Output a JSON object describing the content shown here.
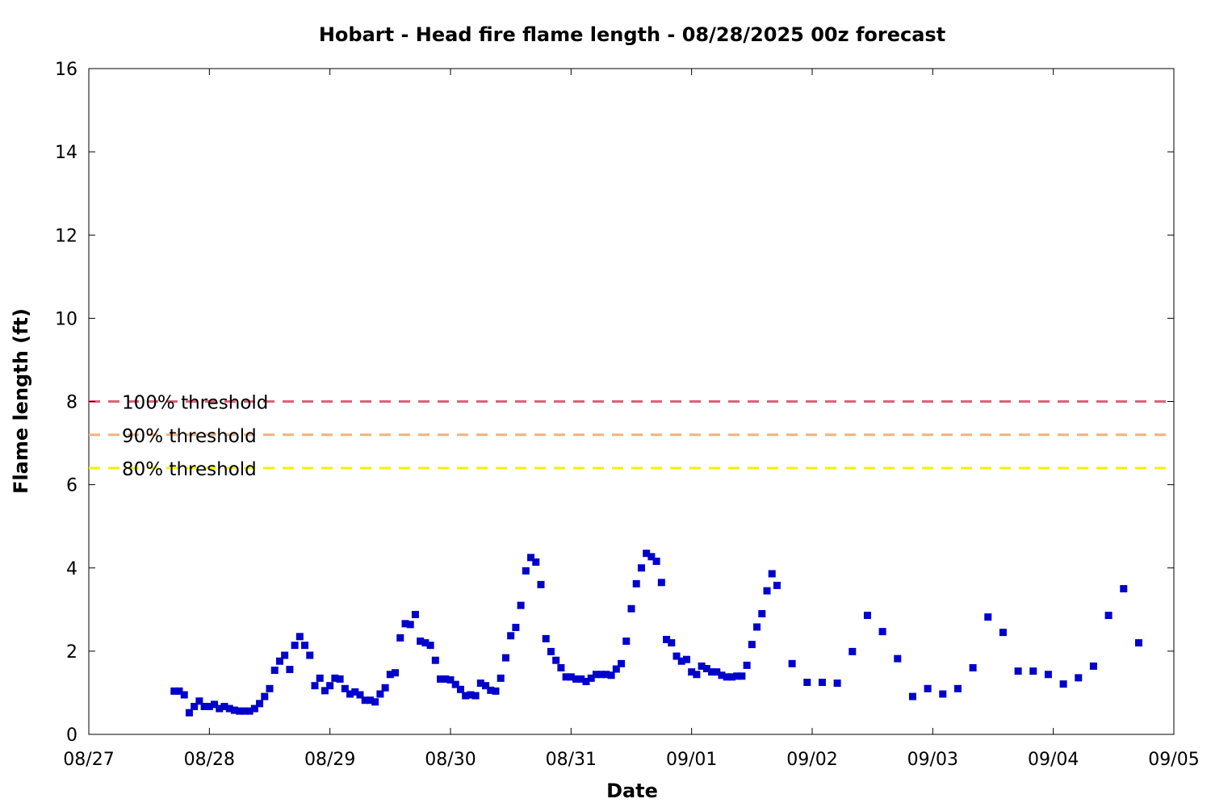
{
  "chart_data": {
    "type": "scatter",
    "title": "Hobart - Head fire flame length - 08/28/2025 00z forecast",
    "xlabel": "Date",
    "ylabel": "Flame length (ft)",
    "x_ticks": [
      "08/27",
      "08/28",
      "08/29",
      "08/30",
      "08/31",
      "09/01",
      "09/02",
      "09/03",
      "09/04",
      "09/05"
    ],
    "xlim": [
      "08/27 00:00",
      "09/05 00:00"
    ],
    "ylim": [
      0,
      16
    ],
    "y_ticks": [
      0,
      2,
      4,
      6,
      8,
      10,
      12,
      14,
      16
    ],
    "grid": false,
    "marker_color": "#0000cc",
    "thresholds": [
      {
        "label": "100% threshold",
        "value": 8.0,
        "color": "#e0607a"
      },
      {
        "label": "90% threshold",
        "value": 7.2,
        "color": "#f2b27a"
      },
      {
        "label": "80% threshold",
        "value": 6.4,
        "color": "#f2f200"
      }
    ],
    "series": [
      {
        "points": [
          [
            "08/27 17:00",
            1.04
          ],
          [
            "08/27 18:00",
            1.04
          ],
          [
            "08/27 19:00",
            0.95
          ],
          [
            "08/27 20:00",
            0.52
          ],
          [
            "08/27 21:00",
            0.67
          ],
          [
            "08/27 22:00",
            0.8
          ],
          [
            "08/27 23:00",
            0.67
          ],
          [
            "08/28 00:00",
            0.67
          ],
          [
            "08/28 01:00",
            0.72
          ],
          [
            "08/28 02:00",
            0.62
          ],
          [
            "08/28 03:00",
            0.67
          ],
          [
            "08/28 04:00",
            0.62
          ],
          [
            "08/28 05:00",
            0.58
          ],
          [
            "08/28 06:00",
            0.56
          ],
          [
            "08/28 07:00",
            0.56
          ],
          [
            "08/28 08:00",
            0.56
          ],
          [
            "08/28 09:00",
            0.62
          ],
          [
            "08/28 10:00",
            0.74
          ],
          [
            "08/28 11:00",
            0.91
          ],
          [
            "08/28 12:00",
            1.1
          ],
          [
            "08/28 13:00",
            1.54
          ],
          [
            "08/28 14:00",
            1.76
          ],
          [
            "08/28 15:00",
            1.9
          ],
          [
            "08/28 16:00",
            1.56
          ],
          [
            "08/28 17:00",
            2.14
          ],
          [
            "08/28 18:00",
            2.35
          ],
          [
            "08/28 19:00",
            2.14
          ],
          [
            "08/28 20:00",
            1.9
          ],
          [
            "08/28 21:00",
            1.17
          ],
          [
            "08/28 22:00",
            1.35
          ],
          [
            "08/28 23:00",
            1.05
          ],
          [
            "08/29 00:00",
            1.17
          ],
          [
            "08/29 01:00",
            1.35
          ],
          [
            "08/29 02:00",
            1.33
          ],
          [
            "08/29 03:00",
            1.1
          ],
          [
            "08/29 04:00",
            0.97
          ],
          [
            "08/29 05:00",
            1.02
          ],
          [
            "08/29 06:00",
            0.95
          ],
          [
            "08/29 07:00",
            0.82
          ],
          [
            "08/29 08:00",
            0.82
          ],
          [
            "08/29 09:00",
            0.78
          ],
          [
            "08/29 10:00",
            0.97
          ],
          [
            "08/29 11:00",
            1.12
          ],
          [
            "08/29 12:00",
            1.44
          ],
          [
            "08/29 13:00",
            1.48
          ],
          [
            "08/29 14:00",
            2.32
          ],
          [
            "08/29 15:00",
            2.66
          ],
          [
            "08/29 16:00",
            2.64
          ],
          [
            "08/29 17:00",
            2.88
          ],
          [
            "08/29 18:00",
            2.24
          ],
          [
            "08/29 19:00",
            2.2
          ],
          [
            "08/29 20:00",
            2.14
          ],
          [
            "08/29 21:00",
            1.78
          ],
          [
            "08/29 22:00",
            1.33
          ],
          [
            "08/29 23:00",
            1.33
          ],
          [
            "08/30 00:00",
            1.31
          ],
          [
            "08/30 01:00",
            1.2
          ],
          [
            "08/30 02:00",
            1.08
          ],
          [
            "08/30 03:00",
            0.93
          ],
          [
            "08/30 04:00",
            0.95
          ],
          [
            "08/30 05:00",
            0.93
          ],
          [
            "08/30 06:00",
            1.23
          ],
          [
            "08/30 07:00",
            1.17
          ],
          [
            "08/30 08:00",
            1.06
          ],
          [
            "08/30 09:00",
            1.04
          ],
          [
            "08/30 10:00",
            1.35
          ],
          [
            "08/30 11:00",
            1.84
          ],
          [
            "08/30 12:00",
            2.37
          ],
          [
            "08/30 13:00",
            2.57
          ],
          [
            "08/30 14:00",
            3.1
          ],
          [
            "08/30 15:00",
            3.93
          ],
          [
            "08/30 16:00",
            4.25
          ],
          [
            "08/30 17:00",
            4.14
          ],
          [
            "08/30 18:00",
            3.6
          ],
          [
            "08/30 19:00",
            2.3
          ],
          [
            "08/30 20:00",
            1.99
          ],
          [
            "08/30 21:00",
            1.78
          ],
          [
            "08/30 22:00",
            1.6
          ],
          [
            "08/30 23:00",
            1.38
          ],
          [
            "08/31 00:00",
            1.38
          ],
          [
            "08/31 01:00",
            1.33
          ],
          [
            "08/31 02:00",
            1.33
          ],
          [
            "08/31 03:00",
            1.27
          ],
          [
            "08/31 04:00",
            1.35
          ],
          [
            "08/31 05:00",
            1.44
          ],
          [
            "08/31 06:00",
            1.44
          ],
          [
            "08/31 07:00",
            1.44
          ],
          [
            "08/31 08:00",
            1.42
          ],
          [
            "08/31 09:00",
            1.57
          ],
          [
            "08/31 10:00",
            1.7
          ],
          [
            "08/31 11:00",
            2.24
          ],
          [
            "08/31 12:00",
            3.02
          ],
          [
            "08/31 13:00",
            3.62
          ],
          [
            "08/31 14:00",
            4.0
          ],
          [
            "08/31 15:00",
            4.35
          ],
          [
            "08/31 16:00",
            4.27
          ],
          [
            "08/31 17:00",
            4.16
          ],
          [
            "08/31 18:00",
            3.65
          ],
          [
            "08/31 19:00",
            2.28
          ],
          [
            "08/31 20:00",
            2.2
          ],
          [
            "08/31 21:00",
            1.88
          ],
          [
            "08/31 22:00",
            1.76
          ],
          [
            "08/31 23:00",
            1.8
          ],
          [
            "09/01 00:00",
            1.5
          ],
          [
            "09/01 01:00",
            1.44
          ],
          [
            "09/01 02:00",
            1.64
          ],
          [
            "09/01 03:00",
            1.58
          ],
          [
            "09/01 04:00",
            1.5
          ],
          [
            "09/01 05:00",
            1.5
          ],
          [
            "09/01 06:00",
            1.42
          ],
          [
            "09/01 07:00",
            1.38
          ],
          [
            "09/01 08:00",
            1.38
          ],
          [
            "09/01 09:00",
            1.4
          ],
          [
            "09/01 10:00",
            1.4
          ],
          [
            "09/01 11:00",
            1.66
          ],
          [
            "09/01 12:00",
            2.16
          ],
          [
            "09/01 13:00",
            2.58
          ],
          [
            "09/01 14:00",
            2.9
          ],
          [
            "09/01 15:00",
            3.45
          ],
          [
            "09/01 16:00",
            3.86
          ],
          [
            "09/01 17:00",
            3.58
          ],
          [
            "09/01 20:00",
            1.7
          ],
          [
            "09/01 23:00",
            1.25
          ],
          [
            "09/02 02:00",
            1.25
          ],
          [
            "09/02 05:00",
            1.23
          ],
          [
            "09/02 08:00",
            1.99
          ],
          [
            "09/02 11:00",
            2.86
          ],
          [
            "09/02 14:00",
            2.47
          ],
          [
            "09/02 17:00",
            1.82
          ],
          [
            "09/02 20:00",
            0.91
          ],
          [
            "09/02 23:00",
            1.1
          ],
          [
            "09/03 02:00",
            0.97
          ],
          [
            "09/03 05:00",
            1.1
          ],
          [
            "09/03 08:00",
            1.6
          ],
          [
            "09/03 11:00",
            2.82
          ],
          [
            "09/03 14:00",
            2.45
          ],
          [
            "09/03 17:00",
            1.52
          ],
          [
            "09/03 20:00",
            1.52
          ],
          [
            "09/03 23:00",
            1.44
          ],
          [
            "09/04 02:00",
            1.21
          ],
          [
            "09/04 05:00",
            1.36
          ],
          [
            "09/04 08:00",
            1.64
          ],
          [
            "09/04 11:00",
            2.86
          ],
          [
            "09/04 14:00",
            3.5
          ],
          [
            "09/04 17:00",
            2.2
          ]
        ]
      }
    ]
  }
}
